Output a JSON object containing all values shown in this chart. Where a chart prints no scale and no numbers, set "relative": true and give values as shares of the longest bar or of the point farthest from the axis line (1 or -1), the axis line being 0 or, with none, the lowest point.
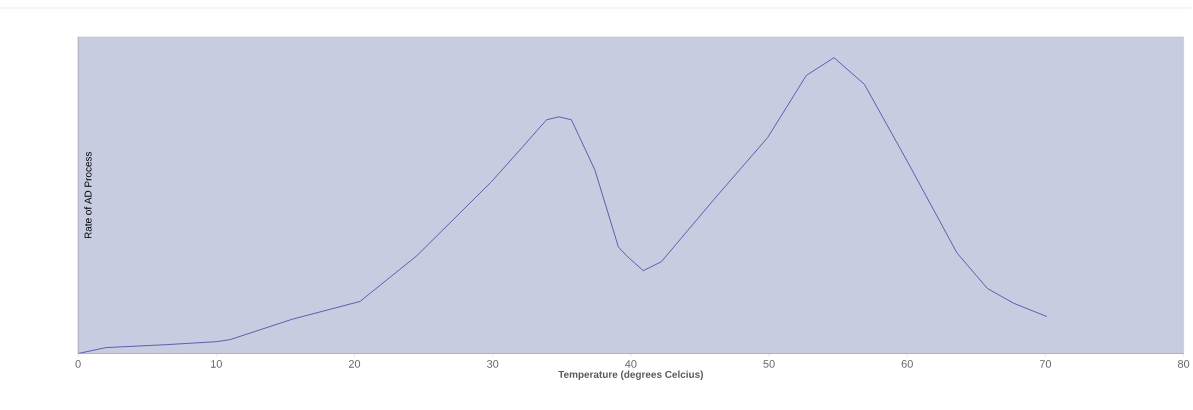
{
  "chart_data": {
    "type": "line",
    "xlabel": "Temperature (degrees Celcius)",
    "ylabel": "Rate of AD Process",
    "relative": true,
    "xlim": [
      0,
      80
    ],
    "xticks": [
      0,
      10,
      20,
      30,
      40,
      50,
      60,
      70,
      80
    ],
    "grid": false,
    "marker": "none",
    "x": [
      0,
      2,
      6.4,
      10,
      11,
      15.5,
      20.4,
      24.5,
      29.9,
      32.2,
      33.9,
      34.8,
      35.7,
      37.4,
      39.1,
      39.7,
      40.9,
      42.2,
      46,
      49.9,
      52.7,
      54.7,
      56.9,
      60,
      63.6,
      65.8,
      67.7,
      70.1
    ],
    "series": [
      {
        "color": "#5a5fae",
        "values": [
          0,
          0.02,
          0.03,
          0.04,
          0.047,
          0.116,
          0.176,
          0.33,
          0.58,
          0.7,
          0.79,
          0.8,
          0.79,
          0.62,
          0.36,
          0.33,
          0.28,
          0.31,
          0.52,
          0.73,
          0.94,
          1,
          0.91,
          0.65,
          0.34,
          0.22,
          0.17,
          0.125
        ]
      }
    ]
  }
}
